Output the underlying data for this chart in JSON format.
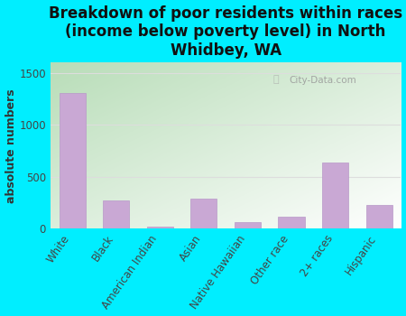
{
  "title": "Breakdown of poor residents within races\n(income below poverty level) in North\nWhidbey, WA",
  "categories": [
    "White",
    "Black",
    "American Indian",
    "Asian",
    "Native Hawaiian",
    "Other race",
    "2+ races",
    "Hispanic"
  ],
  "values": [
    1305,
    270,
    15,
    290,
    60,
    115,
    640,
    230
  ],
  "bar_color": "#c9a8d4",
  "bar_edge_color": "#b898c8",
  "ylabel": "absolute numbers",
  "ylim": [
    0,
    1600
  ],
  "yticks": [
    0,
    500,
    1000,
    1500
  ],
  "background_color": "#00eeff",
  "plot_bg_color_topleft": "#b8ddb8",
  "plot_bg_color_bottomright": "#f8fff8",
  "grid_color": "#dddddd",
  "title_fontsize": 12,
  "ylabel_fontsize": 9,
  "tick_fontsize": 8.5,
  "watermark": "City-Data.com"
}
